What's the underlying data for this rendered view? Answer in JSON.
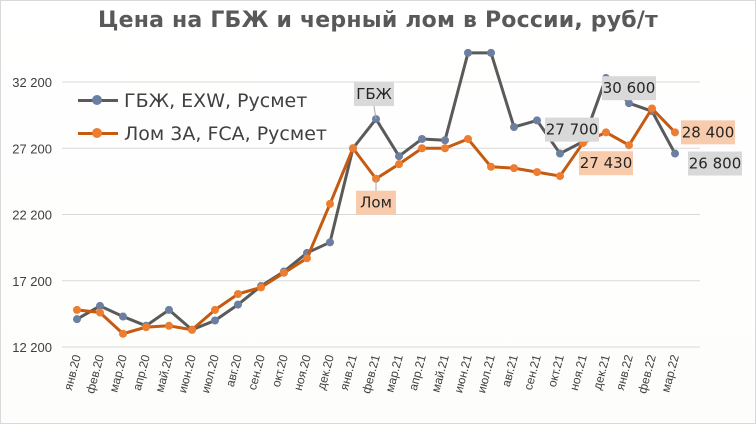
{
  "chart_data": {
    "type": "line",
    "title": "Цена на ГБЖ и черный лом в России, руб/т",
    "categories": [
      "янв.20",
      "фев.20",
      "мар.20",
      "апр.20",
      "май.20",
      "июн.20",
      "июл.20",
      "авг.20",
      "сен.20",
      "окт.20",
      "ноя.20",
      "дек.20",
      "янв.21",
      "фев.21",
      "мар.21",
      "апр.21",
      "май.21",
      "июн.21",
      "июл.21",
      "авг.21",
      "сен.21",
      "окт.21",
      "ноя.21",
      "дек.21",
      "янв.22",
      "фев.22",
      "мар.22"
    ],
    "y_ticks": [
      "12 200",
      "17 200",
      "22 200",
      "27 200",
      "32 200"
    ],
    "y_tick_values": [
      12200,
      17200,
      22200,
      27200,
      32200
    ],
    "ylim": [
      12200,
      34000
    ],
    "grid": true,
    "legend_position": "top-left",
    "series": [
      {
        "name": "ГБЖ, EXW, Русмет",
        "color": "#5a5a5a",
        "marker_color": "#6b7fa0",
        "values": [
          14300,
          15300,
          14500,
          13800,
          15000,
          13500,
          14200,
          15400,
          16800,
          17900,
          19300,
          20100,
          27200,
          29400,
          26600,
          27900,
          27800,
          34400,
          34400,
          28800,
          29300,
          26800,
          27700,
          32500,
          30600,
          30000,
          26800
        ]
      },
      {
        "name": "Лом 3А, FCA, Русмет",
        "color": "#c55a11",
        "marker_color": "#ed7d31",
        "values": [
          15000,
          14800,
          13200,
          13700,
          13800,
          13500,
          15000,
          16200,
          16700,
          17800,
          18900,
          23000,
          27200,
          24900,
          26000,
          27200,
          27200,
          27900,
          25800,
          25700,
          25400,
          25100,
          27600,
          28400,
          27430,
          30200,
          28400
        ]
      }
    ],
    "annotations": [
      {
        "text": "ГБЖ",
        "series": 0,
        "index": 13,
        "style": "gray"
      },
      {
        "text": "Лом",
        "series": 1,
        "index": 13,
        "style": "orange"
      },
      {
        "text": "27 700",
        "series": 0,
        "index": 22,
        "style": "gray"
      },
      {
        "text": "30 600",
        "series": 0,
        "index": 24,
        "style": "gray"
      },
      {
        "text": "27 430",
        "series": 1,
        "index": 24,
        "style": "orange"
      },
      {
        "text": "28 400",
        "series": 1,
        "index": 26,
        "style": "orange"
      },
      {
        "text": "26 800",
        "series": 0,
        "index": 26,
        "style": "gray"
      }
    ]
  },
  "label_colors": {
    "gray_fill": "#d9d9d9",
    "orange_fill": "#f8cbad",
    "axis_text": "#404040",
    "grid": "#d9d9d9"
  }
}
